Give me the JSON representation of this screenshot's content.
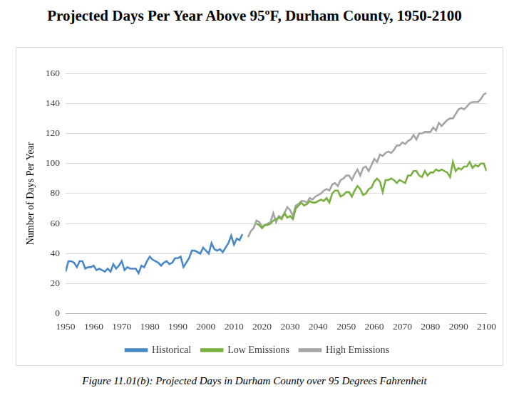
{
  "chart_data": {
    "type": "line",
    "title": "Projected Days Per Year Above 95ºF, Durham County, 1950-2100",
    "caption": "Figure 11.01(b): Projected Days in Durham County over 95 Degrees Fahrenheit",
    "y_label": "Number of Days Per Year",
    "x": [
      1950,
      1951,
      1952,
      1953,
      1954,
      1955,
      1956,
      1957,
      1958,
      1959,
      1960,
      1961,
      1962,
      1963,
      1964,
      1965,
      1966,
      1967,
      1968,
      1969,
      1970,
      1971,
      1972,
      1973,
      1974,
      1975,
      1976,
      1977,
      1978,
      1979,
      1980,
      1981,
      1982,
      1983,
      1984,
      1985,
      1986,
      1987,
      1988,
      1989,
      1990,
      1991,
      1992,
      1993,
      1994,
      1995,
      1996,
      1997,
      1998,
      1999,
      2000,
      2001,
      2002,
      2003,
      2004,
      2005,
      2006,
      2007,
      2008,
      2009,
      2010,
      2011,
      2012,
      2013,
      2014,
      2015,
      2016,
      2017,
      2018,
      2019,
      2020,
      2021,
      2022,
      2023,
      2024,
      2025,
      2026,
      2027,
      2028,
      2029,
      2030,
      2031,
      2032,
      2033,
      2034,
      2035,
      2036,
      2037,
      2038,
      2039,
      2040,
      2041,
      2042,
      2043,
      2044,
      2045,
      2046,
      2047,
      2048,
      2049,
      2050,
      2051,
      2052,
      2053,
      2054,
      2055,
      2056,
      2057,
      2058,
      2059,
      2060,
      2061,
      2062,
      2063,
      2064,
      2065,
      2066,
      2067,
      2068,
      2069,
      2070,
      2071,
      2072,
      2073,
      2074,
      2075,
      2076,
      2077,
      2078,
      2079,
      2080,
      2081,
      2082,
      2083,
      2084,
      2085,
      2086,
      2087,
      2088,
      2089,
      2090,
      2091,
      2092,
      2093,
      2094,
      2095,
      2096,
      2097,
      2098,
      2099,
      2100
    ],
    "series": [
      {
        "name": "Historical",
        "color": "#4a88c7",
        "values": [
          28,
          35,
          35,
          34,
          31,
          35,
          35,
          30,
          31,
          31,
          32,
          29,
          30,
          29,
          28,
          30,
          28,
          33,
          30,
          32,
          35,
          29,
          31,
          30,
          30,
          30,
          27,
          32,
          31,
          35,
          38,
          36,
          35,
          34,
          32,
          34,
          35,
          33,
          34,
          37,
          37,
          38,
          31,
          34,
          37,
          42,
          42,
          41,
          40,
          44,
          42,
          40,
          47,
          43,
          42,
          43,
          41,
          44,
          47,
          52,
          46,
          50,
          49,
          53,
          null,
          null,
          null,
          null,
          null,
          null,
          null,
          null,
          null,
          null,
          null,
          null,
          null,
          null,
          null,
          null,
          null,
          null,
          null,
          null,
          null,
          null,
          null,
          null,
          null,
          null,
          null,
          null,
          null,
          null,
          null,
          null,
          null,
          null,
          null,
          null,
          null,
          null,
          null,
          null,
          null,
          null,
          null,
          null,
          null,
          null,
          null,
          null,
          null,
          null,
          null,
          null,
          null,
          null,
          null,
          null,
          null,
          null,
          null,
          null,
          null,
          null,
          null,
          null,
          null,
          null,
          null,
          null,
          null,
          null,
          null,
          null,
          null,
          null,
          null,
          null,
          null,
          null,
          null,
          null,
          null,
          null,
          null,
          null,
          null,
          null,
          null
        ]
      },
      {
        "name": "Low Emissions",
        "color": "#78b13f",
        "values": [
          null,
          null,
          null,
          null,
          null,
          null,
          null,
          null,
          null,
          null,
          null,
          null,
          null,
          null,
          null,
          null,
          null,
          null,
          null,
          null,
          null,
          null,
          null,
          null,
          null,
          null,
          null,
          null,
          null,
          null,
          null,
          null,
          null,
          null,
          null,
          null,
          null,
          null,
          null,
          null,
          null,
          null,
          null,
          null,
          null,
          null,
          null,
          null,
          null,
          null,
          null,
          null,
          null,
          null,
          null,
          null,
          null,
          null,
          null,
          null,
          null,
          null,
          null,
          null,
          null,
          null,
          null,
          null,
          60,
          59,
          57,
          59,
          59,
          60,
          62,
          63,
          64,
          63,
          67,
          64,
          65,
          63,
          70,
          72,
          74,
          72,
          73,
          75,
          74,
          74,
          75,
          76,
          75,
          77,
          74,
          80,
          82,
          82,
          78,
          79,
          81,
          81,
          78,
          82,
          85,
          83,
          79,
          80,
          83,
          84,
          88,
          90,
          88,
          81,
          89,
          89,
          90,
          89,
          87,
          89,
          88,
          87,
          92,
          92,
          95,
          95,
          92,
          91,
          95,
          92,
          94,
          94,
          96,
          95,
          96,
          95,
          94,
          91,
          101,
          95,
          97,
          96,
          98,
          98,
          101,
          97,
          99,
          98,
          100,
          100,
          95
        ]
      },
      {
        "name": "High Emissions",
        "color": "#a5a5a5",
        "values": [
          null,
          null,
          null,
          null,
          null,
          null,
          null,
          null,
          null,
          null,
          null,
          null,
          null,
          null,
          null,
          null,
          null,
          null,
          null,
          null,
          null,
          null,
          null,
          null,
          null,
          null,
          null,
          null,
          null,
          null,
          null,
          null,
          null,
          null,
          null,
          null,
          null,
          null,
          null,
          null,
          null,
          null,
          null,
          null,
          null,
          null,
          null,
          null,
          null,
          null,
          null,
          null,
          null,
          null,
          null,
          null,
          null,
          null,
          null,
          null,
          null,
          null,
          null,
          null,
          null,
          51,
          55,
          57,
          62,
          61,
          58,
          59,
          60,
          61,
          67,
          61,
          65,
          64,
          67,
          71,
          69,
          65,
          72,
          73,
          75,
          75,
          74,
          77,
          76,
          78,
          79,
          80,
          82,
          83,
          82,
          86,
          87,
          85,
          89,
          90,
          92,
          92,
          89,
          93,
          96,
          92,
          97,
          98,
          95,
          99,
          103,
          101,
          106,
          105,
          107,
          108,
          107,
          109,
          112,
          112,
          114,
          113,
          115,
          116,
          119,
          116,
          120,
          120,
          121,
          121,
          121,
          124,
          122,
          127,
          125,
          127,
          129,
          130,
          130,
          133,
          136,
          137,
          136,
          138,
          140,
          141,
          141,
          141,
          143,
          146,
          147
        ]
      }
    ],
    "xlim": [
      1950,
      2100
    ],
    "xticks": [
      1950,
      1960,
      1970,
      1980,
      1990,
      2000,
      2010,
      2020,
      2030,
      2040,
      2050,
      2060,
      2070,
      2080,
      2090,
      2100
    ],
    "ylim": [
      0,
      160
    ],
    "yticks": [
      0,
      20,
      40,
      60,
      80,
      100,
      120,
      140,
      160
    ],
    "grid": true,
    "legend": "bottom"
  }
}
